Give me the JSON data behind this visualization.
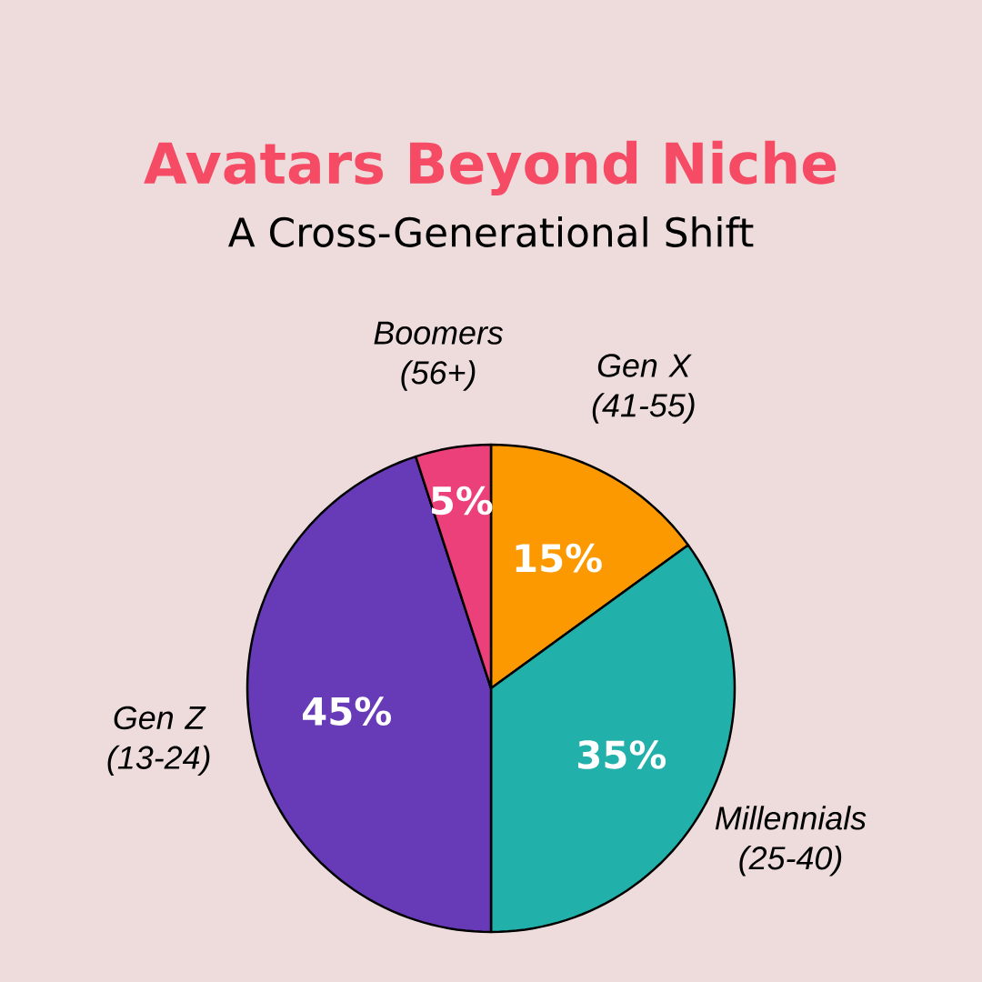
{
  "chart_data": {
    "type": "pie",
    "title": "Avatars Beyond Niche",
    "subtitle": "A Cross-Generational Shift",
    "categories": [
      "Gen X (41-55)",
      "Millennials (25-40)",
      "Gen Z (13-24)",
      "Boomers (56+)"
    ],
    "values": [
      15,
      35,
      45,
      5
    ],
    "value_labels": [
      "15%",
      "35%",
      "45%",
      "5%"
    ],
    "colors": [
      "#fd9900",
      "#22b0aa",
      "#673ab7",
      "#ec407a"
    ]
  }
}
